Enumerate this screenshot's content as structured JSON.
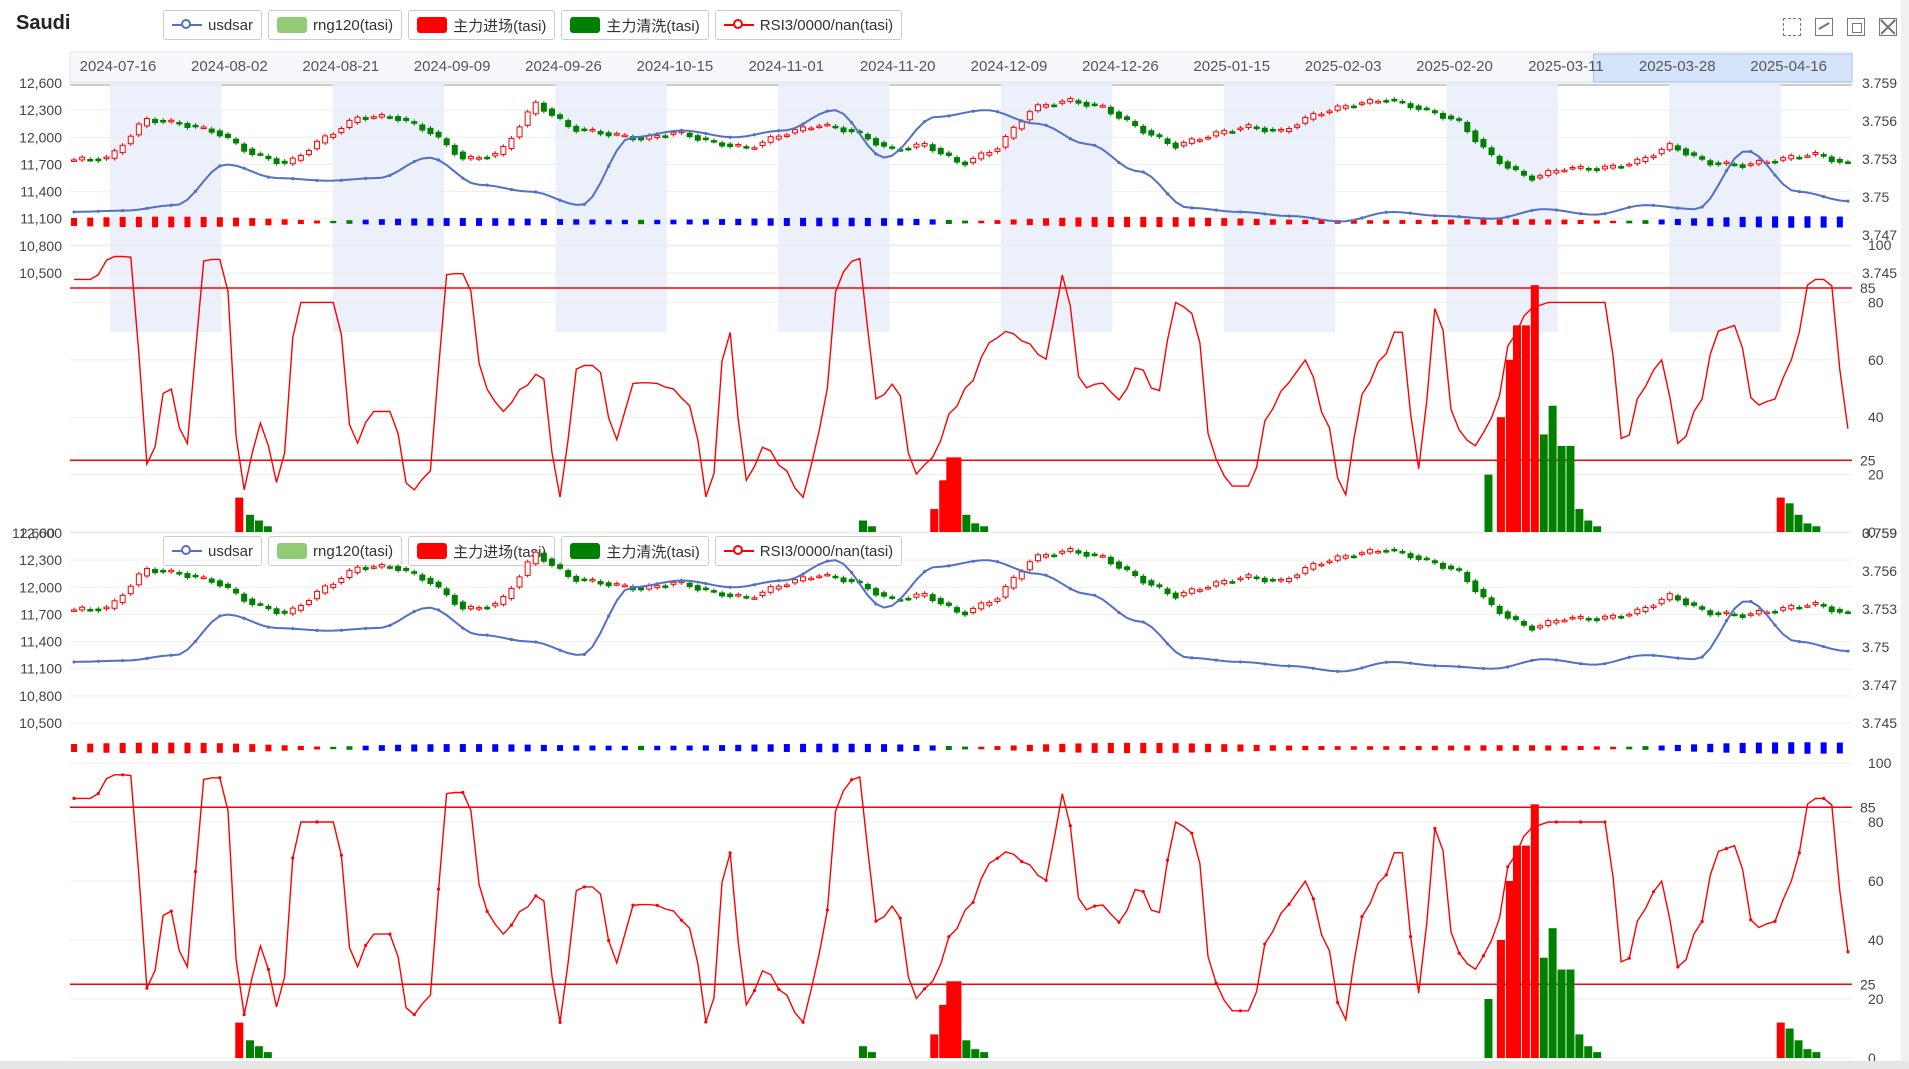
{
  "title": "Saudi",
  "legend": [
    {
      "label": "usdsar",
      "type": "line",
      "color": "#5470c6"
    },
    {
      "label": "rng120(tasi)",
      "type": "box",
      "color": "#91cc75"
    },
    {
      "label": "主力进场(tasi)",
      "type": "box",
      "color": "#ff0000"
    },
    {
      "label": "主力清洗(tasi)",
      "type": "box",
      "color": "#008000"
    },
    {
      "label": "RSI3/0000/nan(tasi)",
      "type": "line",
      "color": "#ff0000"
    }
  ],
  "colors": {
    "up": "#ff0000",
    "down": "#008000",
    "usd": "#5470c6",
    "rsi": "#ff0000",
    "neg": "#0000ff",
    "band": "#e9eef9"
  },
  "toolbox": [
    "zoom-icon",
    "back-icon",
    "restore-icon",
    "save-icon"
  ],
  "chart_data": {
    "type": "candlestick-combo",
    "dates": [
      "2024-07-16",
      "2024-08-02",
      "2024-08-21",
      "2024-09-09",
      "2024-09-26",
      "2024-10-15",
      "2024-11-01",
      "2024-11-20",
      "2024-12-09",
      "2024-12-26",
      "2025-01-15",
      "2025-02-03",
      "2025-02-20",
      "2025-03-11",
      "2025-03-28",
      "2025-04-16"
    ],
    "price_ticks": [
      "12,600",
      "12,300",
      "12,000",
      "11,700",
      "11,400",
      "11,100",
      "10,800",
      "10,500"
    ],
    "usd_ticks": [
      "3.759",
      "3.756",
      "3.753",
      "3.75",
      "3.747",
      "3.745"
    ],
    "rsi_ticks": [
      "100",
      "80",
      "60",
      "40",
      "20",
      "0"
    ],
    "rsi_bottom_label_top": "0.759",
    "price_range": [
      10500,
      12600
    ],
    "usd_range": [
      3.745,
      3.759
    ],
    "rsi_range": [
      0,
      100
    ],
    "rsi_levels": [
      {
        "label": "85",
        "value": 85
      },
      {
        "label": "25",
        "value": 25
      }
    ],
    "price_anchors": [
      11750,
      11770,
      12200,
      12150,
      12060,
      11820,
      11700,
      11980,
      12220,
      12230,
      12070,
      11750,
      11820,
      12380,
      12100,
      12040,
      11980,
      12060,
      11940,
      11880,
      12040,
      12140,
      12060,
      11860,
      11920,
      11700,
      11880,
      12320,
      12410,
      12330,
      12100,
      11900,
      12020,
      12120,
      12060,
      12260,
      12360,
      12420,
      12310,
      12180,
      11770,
      11540,
      11660,
      11650,
      11720,
      11910,
      11720,
      11690,
      11750,
      11820,
      11700
    ],
    "usd_anchors": [
      3.7495,
      3.7496,
      3.75,
      3.753,
      3.752,
      3.7518,
      3.752,
      3.7535,
      3.7515,
      3.751,
      3.75,
      3.755,
      3.7555,
      3.755,
      3.7555,
      3.757,
      3.7535,
      3.7565,
      3.757,
      3.756,
      3.7545,
      3.7525,
      3.7498,
      3.7495,
      3.7492,
      3.7488,
      3.7495,
      3.7492,
      3.749,
      3.7497,
      3.7493,
      3.75,
      3.7497,
      3.754,
      3.751,
      3.7503
    ],
    "rsi_anchors": [
      88,
      88,
      96,
      96,
      22,
      52,
      30,
      95,
      95,
      14,
      38,
      16,
      80,
      80,
      80,
      30,
      42,
      42,
      14,
      20,
      90,
      90,
      50,
      42,
      50,
      56,
      12,
      58,
      58,
      32,
      52,
      52,
      50,
      44,
      10,
      72,
      18,
      30,
      22,
      12,
      36,
      90,
      96,
      46,
      52,
      20,
      26,
      42,
      52,
      66,
      70,
      66,
      60,
      90,
      50,
      52,
      46,
      58,
      48,
      80,
      76,
      26,
      16,
      16,
      42,
      52,
      60,
      40,
      12,
      48,
      60,
      72,
      22,
      80,
      36,
      30,
      40,
      68,
      78,
      80,
      80,
      80,
      80,
      30,
      50,
      60,
      30,
      44,
      70,
      72,
      44,
      46,
      60,
      88,
      88,
      36
    ],
    "signal_red": [
      {
        "pos": 0.095,
        "v": 12
      },
      {
        "pos": 0.485,
        "v": 8
      },
      {
        "pos": 0.49,
        "v": 18
      },
      {
        "pos": 0.494,
        "v": 26
      },
      {
        "pos": 0.498,
        "v": 26
      },
      {
        "pos": 0.803,
        "v": 40
      },
      {
        "pos": 0.808,
        "v": 60
      },
      {
        "pos": 0.812,
        "v": 72
      },
      {
        "pos": 0.817,
        "v": 72
      },
      {
        "pos": 0.822,
        "v": 86
      },
      {
        "pos": 0.96,
        "v": 12
      }
    ],
    "signal_green": [
      {
        "pos": 0.101,
        "v": 6
      },
      {
        "pos": 0.106,
        "v": 4
      },
      {
        "pos": 0.111,
        "v": 2
      },
      {
        "pos": 0.445,
        "v": 4
      },
      {
        "pos": 0.45,
        "v": 2
      },
      {
        "pos": 0.503,
        "v": 6
      },
      {
        "pos": 0.508,
        "v": 3
      },
      {
        "pos": 0.513,
        "v": 2
      },
      {
        "pos": 0.796,
        "v": 20
      },
      {
        "pos": 0.827,
        "v": 34
      },
      {
        "pos": 0.832,
        "v": 44
      },
      {
        "pos": 0.837,
        "v": 30
      },
      {
        "pos": 0.842,
        "v": 30
      },
      {
        "pos": 0.847,
        "v": 8
      },
      {
        "pos": 0.852,
        "v": 4
      },
      {
        "pos": 0.857,
        "v": 2
      },
      {
        "pos": 0.965,
        "v": 10
      },
      {
        "pos": 0.97,
        "v": 6
      },
      {
        "pos": 0.975,
        "v": 3
      },
      {
        "pos": 0.98,
        "v": 2
      }
    ]
  }
}
